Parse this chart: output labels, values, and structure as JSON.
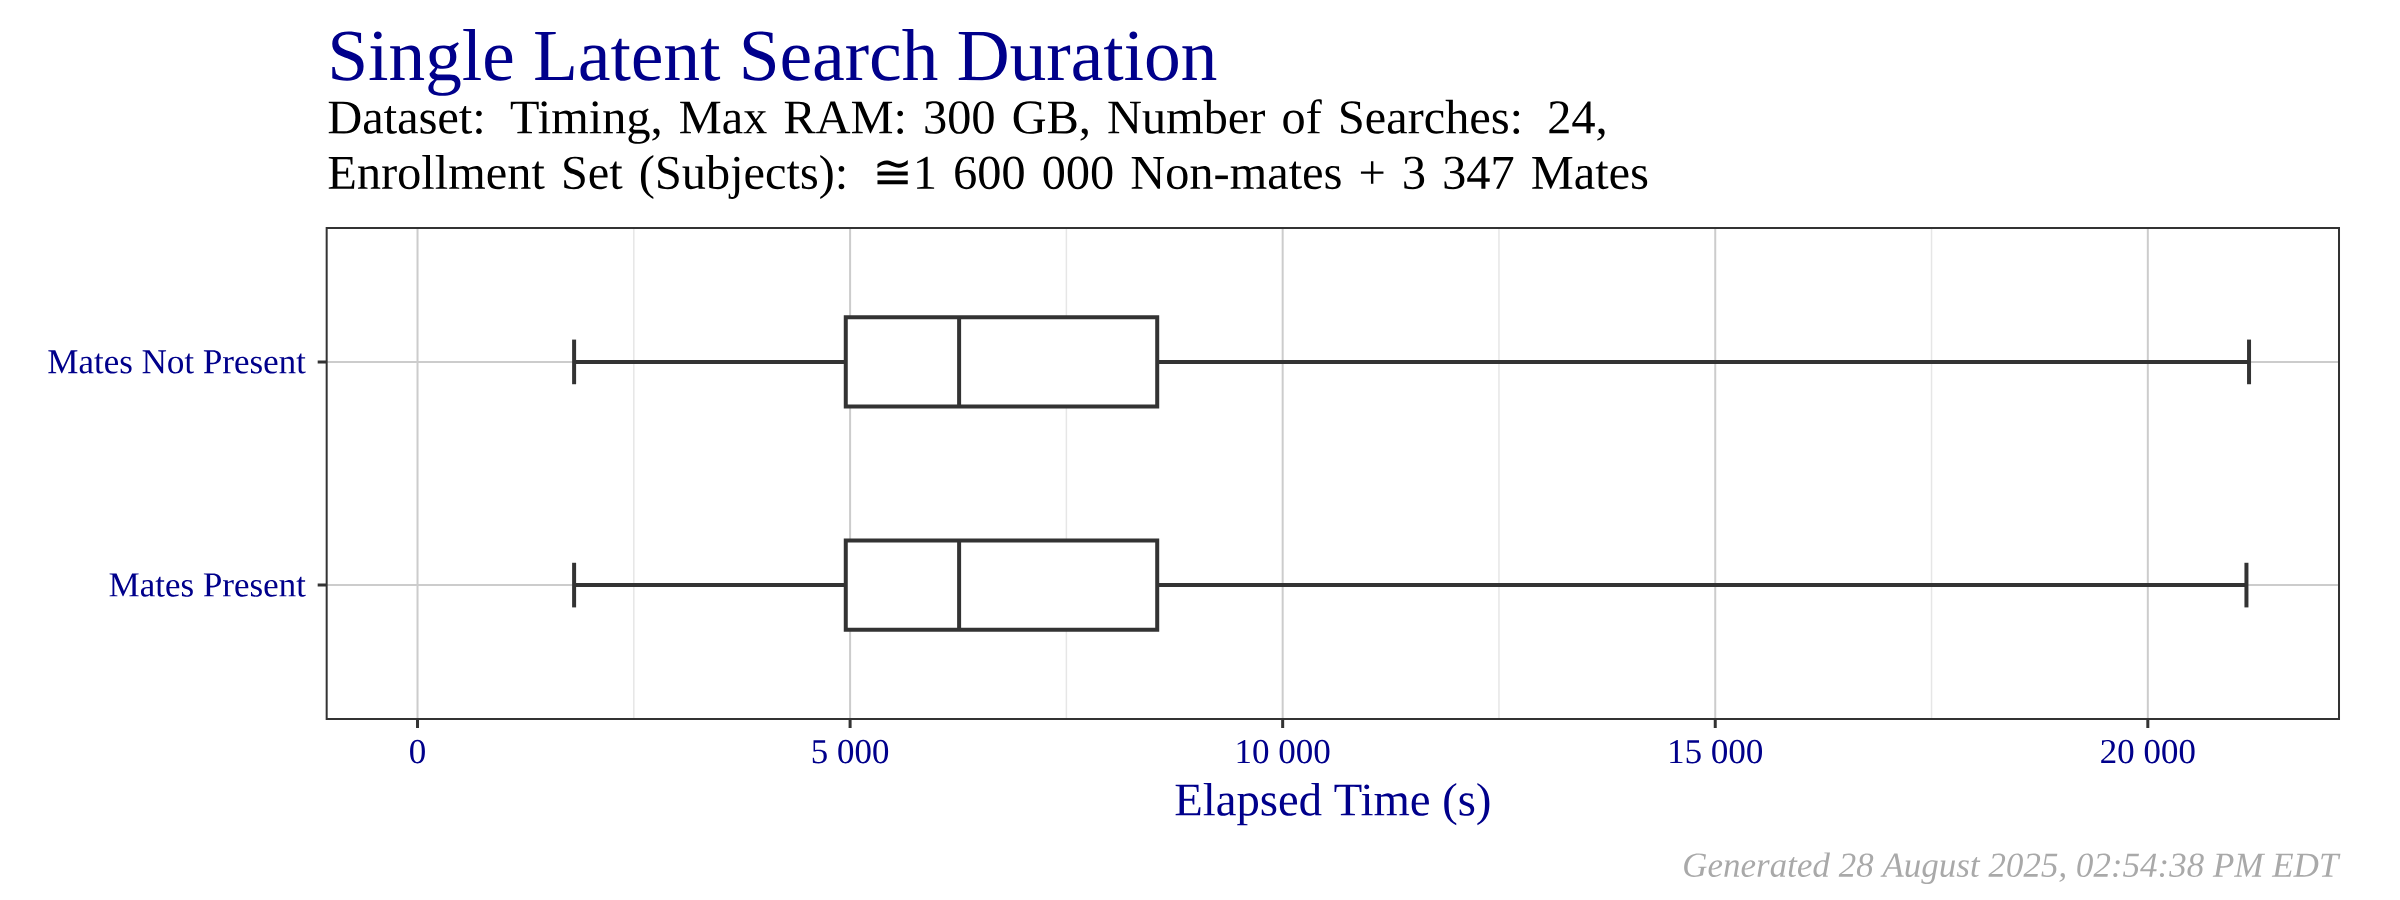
{
  "chart_data": {
    "type": "box",
    "orientation": "horizontal",
    "title": "Single Latent Search Duration",
    "subtitle": "Dataset: Timing, Max RAM: 300 GB, Number of Searches: 24,\nEnrollment Set (Subjects): ≅1 600 000 Non-mates + 3 347 Mates",
    "xlabel": "Elapsed Time (s)",
    "annotations": [
      "Generated 28 August 2025, 02:54:38 PM EDT"
    ],
    "categories": [
      "Mates Not Present",
      "Mates Present"
    ],
    "boxes": [
      {
        "low": 1810,
        "q1": 4950,
        "median": 6260,
        "q3": 8550,
        "high": 21170
      },
      {
        "low": 1810,
        "q1": 4950,
        "median": 6260,
        "q3": 8550,
        "high": 21140
      }
    ],
    "color": "#333333",
    "xlim": [
      -1050,
      22210
    ],
    "xticks": [
      0,
      {
        "value": 2500,
        "label": null
      },
      {
        "value": 5000,
        "label": "5 000"
      },
      {
        "value": 7500,
        "label": null
      },
      {
        "value": 10000,
        "label": "10 000"
      },
      {
        "value": 12500,
        "label": null
      },
      {
        "value": 15000,
        "label": "15 000"
      },
      {
        "value": 17500,
        "label": null
      },
      {
        "value": 20000,
        "label": "20 000"
      }
    ],
    "grid": true
  }
}
